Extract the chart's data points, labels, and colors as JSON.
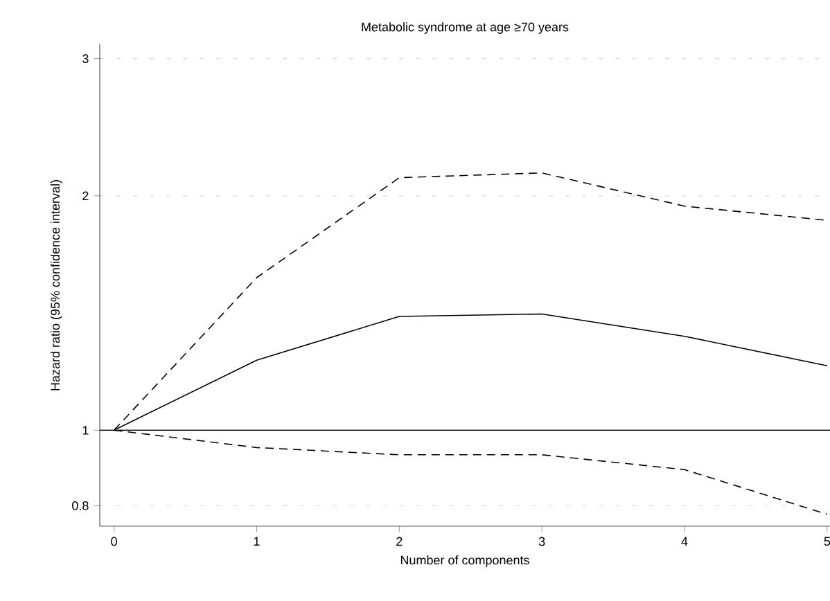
{
  "chart_data": {
    "type": "line",
    "title": "Metabolic syndrome at age ≥70 years",
    "xlabel": "Number of components",
    "ylabel": "Hazard ratio (95% confidence interval)",
    "log": "y",
    "grid": "y",
    "x": [
      0,
      1,
      2,
      3,
      4,
      5
    ],
    "xlim": [
      -0.1,
      5.02
    ],
    "xticks": [
      0,
      1,
      2,
      3,
      4,
      5
    ],
    "ylim": [
      0.753,
      3.13
    ],
    "yticks": [
      0.8,
      1,
      2,
      3
    ],
    "series": [
      {
        "color": "#000000",
        "line_style": "dashed",
        "values": [
          1,
          1.57,
          2.11,
          2.14,
          1.94,
          1.86
        ]
      },
      {
        "color": "#000000",
        "line_style": "solid",
        "values": [
          1,
          1.23,
          1.4,
          1.41,
          1.32,
          1.21
        ]
      },
      {
        "color": "#000000",
        "line_style": "dashed",
        "values": [
          1,
          0.95,
          0.93,
          0.93,
          0.89,
          0.78
        ]
      }
    ],
    "ref_lines": [
      {
        "axis": "y",
        "value": 1,
        "color": "#000000",
        "line_style": "solid"
      }
    ]
  }
}
